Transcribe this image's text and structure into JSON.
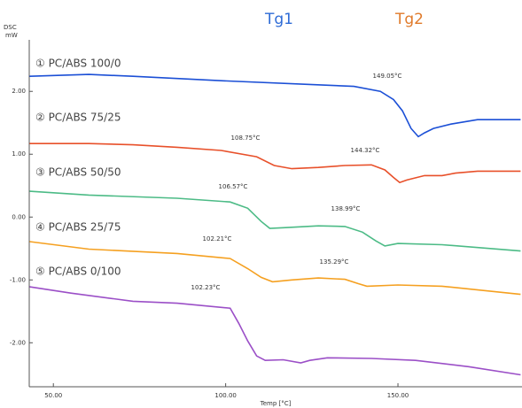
{
  "chart_data": {
    "type": "line",
    "y_label": "DSC",
    "y_unit": "mW",
    "x_label": "Temp [°C]",
    "xlim": [
      43,
      186
    ],
    "ylim": [
      -2.7,
      2.82
    ],
    "xticks": [
      {
        "value": 50,
        "label": "50.00"
      },
      {
        "value": 100,
        "label": "100.00"
      },
      {
        "value": 150,
        "label": "150.00"
      }
    ],
    "yticks": [
      {
        "value": 2,
        "label": "2.00"
      },
      {
        "value": 1,
        "label": "1.00"
      },
      {
        "value": 0,
        "label": "0.00"
      },
      {
        "value": -1,
        "label": "-1.00"
      },
      {
        "value": -2,
        "label": "-2.00"
      }
    ],
    "tg_labels": [
      {
        "text": "Tg1",
        "color": "#2e6bd6"
      },
      {
        "text": "Tg2",
        "color": "#e07a2a"
      }
    ],
    "annotations": [
      "149.05°C",
      "108.75°C",
      "144.32°C",
      "106.57°C",
      "138.99°C",
      "102.21°C",
      "135.29°C",
      "102.23°C"
    ],
    "series": [
      {
        "name": "① PC/ABS 100/0",
        "color": "#1b4fd6",
        "x": [
          43.1,
          60.3,
          73.1,
          98.7,
          124.4,
          137.2,
          144.9,
          148.7,
          151.3,
          153.8,
          155.9,
          157.7,
          160.3,
          165.4,
          173.1,
          185.6
        ],
        "values": [
          2.24,
          2.27,
          2.24,
          2.17,
          2.11,
          2.08,
          2.0,
          1.87,
          1.69,
          1.41,
          1.28,
          1.34,
          1.41,
          1.48,
          1.55,
          1.55
        ]
      },
      {
        "name": "② PC/ABS 75/25",
        "color": "#e8502a",
        "x": [
          43.1,
          60.3,
          73.1,
          85.9,
          98.7,
          109,
          114.1,
          119.2,
          126.9,
          134.6,
          142.3,
          146.2,
          148.7,
          150.5,
          152.6,
          157.7,
          162.8,
          166.7,
          173.1,
          185.6
        ],
        "values": [
          1.17,
          1.17,
          1.15,
          1.11,
          1.06,
          0.96,
          0.82,
          0.77,
          0.79,
          0.82,
          0.83,
          0.75,
          0.63,
          0.55,
          0.59,
          0.66,
          0.66,
          0.7,
          0.73,
          0.73
        ]
      },
      {
        "name": "③ PC/ABS 50/50",
        "color": "#4cbb86",
        "x": [
          43.1,
          60.3,
          85.9,
          101.3,
          106.4,
          110.3,
          112.8,
          116.7,
          126.9,
          134.6,
          139.7,
          143.6,
          146.2,
          150,
          162.8,
          185.6
        ],
        "values": [
          0.41,
          0.35,
          0.3,
          0.24,
          0.14,
          -0.07,
          -0.18,
          -0.17,
          -0.14,
          -0.15,
          -0.24,
          -0.38,
          -0.46,
          -0.42,
          -0.44,
          -0.54
        ]
      },
      {
        "name": "④ PC/ABS 25/75",
        "color": "#f5a020",
        "x": [
          43.1,
          60.3,
          85.9,
          101.3,
          106.4,
          110.3,
          113.6,
          119.2,
          126.9,
          134.6,
          138.5,
          141,
          150,
          162.8,
          185.6
        ],
        "values": [
          -0.39,
          -0.51,
          -0.58,
          -0.66,
          -0.82,
          -0.96,
          -1.03,
          -1.0,
          -0.97,
          -0.99,
          -1.06,
          -1.1,
          -1.08,
          -1.1,
          -1.23
        ]
      },
      {
        "name": "⑤ PC/ABS 0/100",
        "color": "#9b4fc7",
        "x": [
          43.1,
          55.1,
          73.1,
          85.9,
          101.3,
          103.8,
          106.4,
          109,
          111.5,
          116.7,
          121.8,
          124.4,
          129.5,
          142.3,
          155.1,
          170.5,
          185.6
        ],
        "values": [
          -1.11,
          -1.21,
          -1.34,
          -1.37,
          -1.45,
          -1.69,
          -1.97,
          -2.21,
          -2.28,
          -2.27,
          -2.32,
          -2.28,
          -2.24,
          -2.25,
          -2.28,
          -2.38,
          -2.51
        ]
      }
    ]
  }
}
